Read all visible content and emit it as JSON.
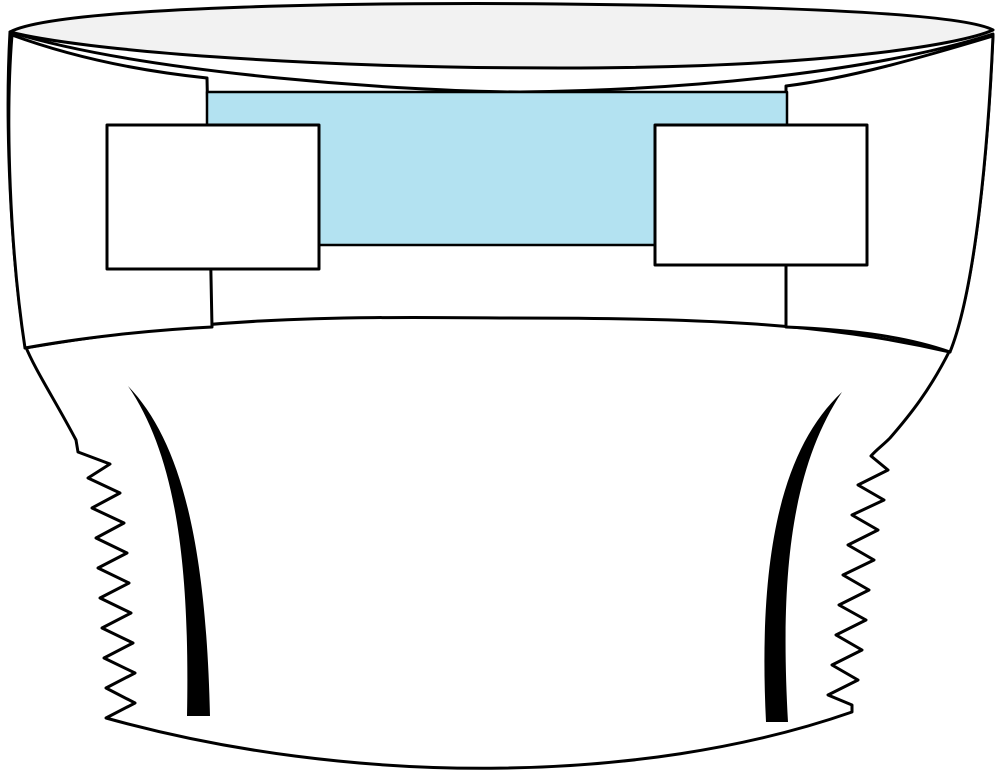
{
  "illustration": {
    "subject": "diaper",
    "colors": {
      "outline": "#000000",
      "body": "#ffffff",
      "waistband_inner": "#f2f2f2",
      "landing_zone": "#b3e2f1",
      "tab": "#ffffff",
      "elastic_stripe": "#000000"
    }
  }
}
